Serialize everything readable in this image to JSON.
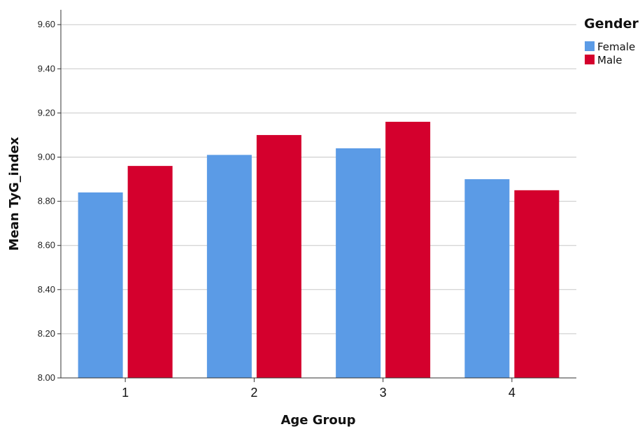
{
  "chart_data": {
    "type": "bar",
    "xlabel": "Age Group",
    "ylabel": "Mean TyG_index",
    "categories": [
      "1",
      "2",
      "3",
      "4"
    ],
    "ylim": [
      8.0,
      9.7
    ],
    "yticks": [
      "8.00",
      "8.20",
      "8.40",
      "8.60",
      "8.80",
      "9.00",
      "9.20",
      "9.40",
      "9.60"
    ],
    "grid": true,
    "legend": {
      "title": "Gender",
      "placement": "top-right"
    },
    "series": [
      {
        "name": "Female",
        "color": "#5b9be6",
        "values": [
          8.84,
          9.01,
          9.04,
          8.9
        ]
      },
      {
        "name": "Male",
        "color": "#d4002d",
        "values": [
          8.96,
          9.1,
          9.16,
          8.85
        ]
      }
    ]
  }
}
